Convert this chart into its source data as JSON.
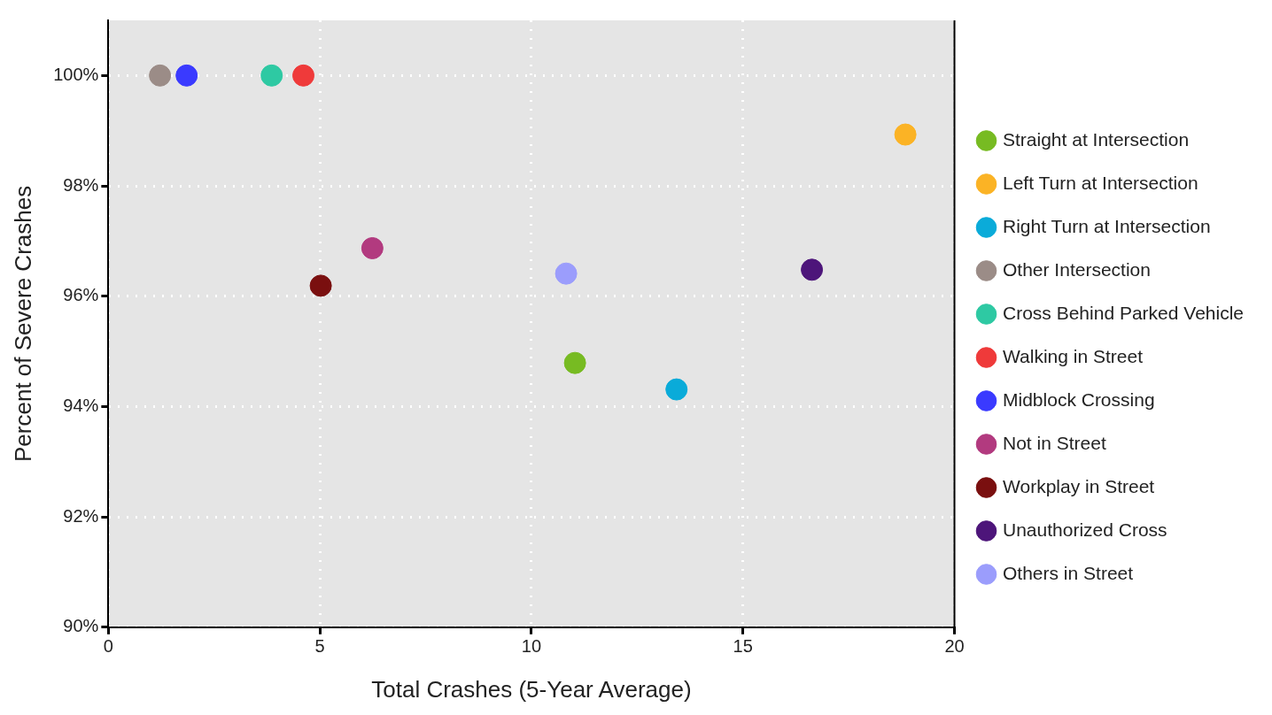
{
  "chart_data": {
    "type": "scatter",
    "xlabel": "Total Crashes (5-Year Average)",
    "ylabel": "Percent of Severe Crashes",
    "xlim": [
      0,
      20
    ],
    "xticks": [
      0,
      5,
      10,
      15,
      20
    ],
    "ylim": [
      90,
      101
    ],
    "yticks": [
      {
        "value": 90,
        "label": "90%"
      },
      {
        "value": 92,
        "label": "92%"
      },
      {
        "value": 94,
        "label": "94%"
      },
      {
        "value": 96,
        "label": "96%"
      },
      {
        "value": 98,
        "label": "98%"
      },
      {
        "value": 100,
        "label": "100%"
      }
    ],
    "grid": true,
    "legend": "right",
    "marker": "circle",
    "series": [
      {
        "name": "Straight at Intersection",
        "color": "#77bb22",
        "x": [
          11.03
        ],
        "values": [
          94.79
        ]
      },
      {
        "name": "Left Turn at Intersection",
        "color": "#fbb325",
        "x": [
          18.84
        ],
        "values": [
          98.93
        ]
      },
      {
        "name": "Right Turn at Intersection",
        "color": "#0aabd9",
        "x": [
          13.43
        ],
        "values": [
          94.31
        ]
      },
      {
        "name": "Other Intersection",
        "color": "#9b8c87",
        "x": [
          1.22
        ],
        "values": [
          100
        ]
      },
      {
        "name": "Cross Behind Parked Vehicle",
        "color": "#2ec9a3",
        "x": [
          3.86
        ],
        "values": [
          100
        ]
      },
      {
        "name": "Walking in Street",
        "color": "#ef3a3a",
        "x": [
          4.61
        ],
        "values": [
          100
        ]
      },
      {
        "name": "Midblock Crossing",
        "color": "#3a3aff",
        "x": [
          1.85
        ],
        "values": [
          100
        ]
      },
      {
        "name": "Not in Street",
        "color": "#b23a7f",
        "x": [
          6.24
        ],
        "values": [
          96.87
        ]
      },
      {
        "name": "Workplay in Street",
        "color": "#7a0f0f",
        "x": [
          5.02
        ],
        "values": [
          96.19
        ]
      },
      {
        "name": "Unauthorized Cross",
        "color": "#4d157a",
        "x": [
          16.63
        ],
        "values": [
          96.48
        ]
      },
      {
        "name": "Others in Street",
        "color": "#9b9dfc",
        "x": [
          10.82
        ],
        "values": [
          96.41
        ]
      }
    ]
  }
}
